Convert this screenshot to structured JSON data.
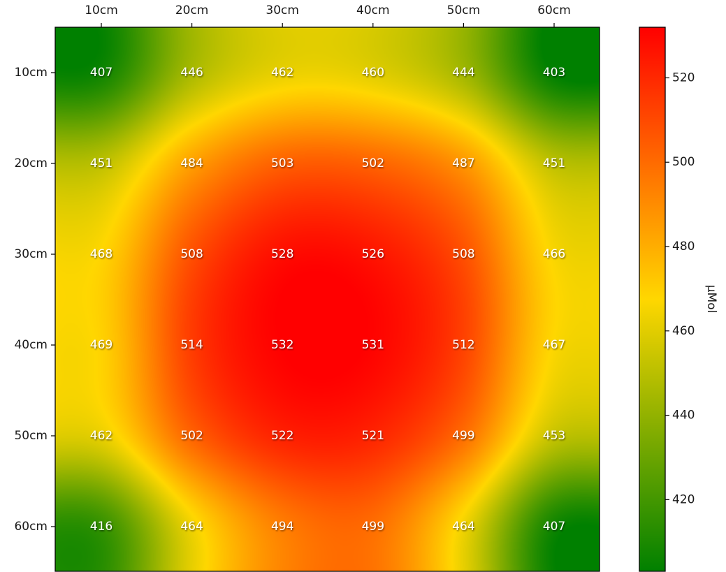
{
  "chart_data": {
    "type": "heatmap",
    "title": "",
    "x_labels": [
      "10cm",
      "20cm",
      "30cm",
      "40cm",
      "50cm",
      "60cm"
    ],
    "y_labels": [
      "10cm",
      "20cm",
      "30cm",
      "40cm",
      "50cm",
      "60cm"
    ],
    "x_axis_position": "top",
    "values": [
      [
        407,
        446,
        462,
        460,
        444,
        403
      ],
      [
        451,
        484,
        503,
        502,
        487,
        451
      ],
      [
        468,
        508,
        528,
        526,
        508,
        466
      ],
      [
        469,
        514,
        532,
        531,
        512,
        467
      ],
      [
        462,
        502,
        522,
        521,
        499,
        453
      ],
      [
        416,
        464,
        494,
        499,
        464,
        407
      ]
    ],
    "colorbar": {
      "label": "µMol",
      "min": 403,
      "max": 532,
      "ticks": [
        420,
        440,
        460,
        480,
        500,
        520
      ],
      "colors": [
        "#008000",
        "#ffd700",
        "#ff0000"
      ],
      "placement": "right"
    },
    "grid": false,
    "interpolation": "smooth"
  }
}
